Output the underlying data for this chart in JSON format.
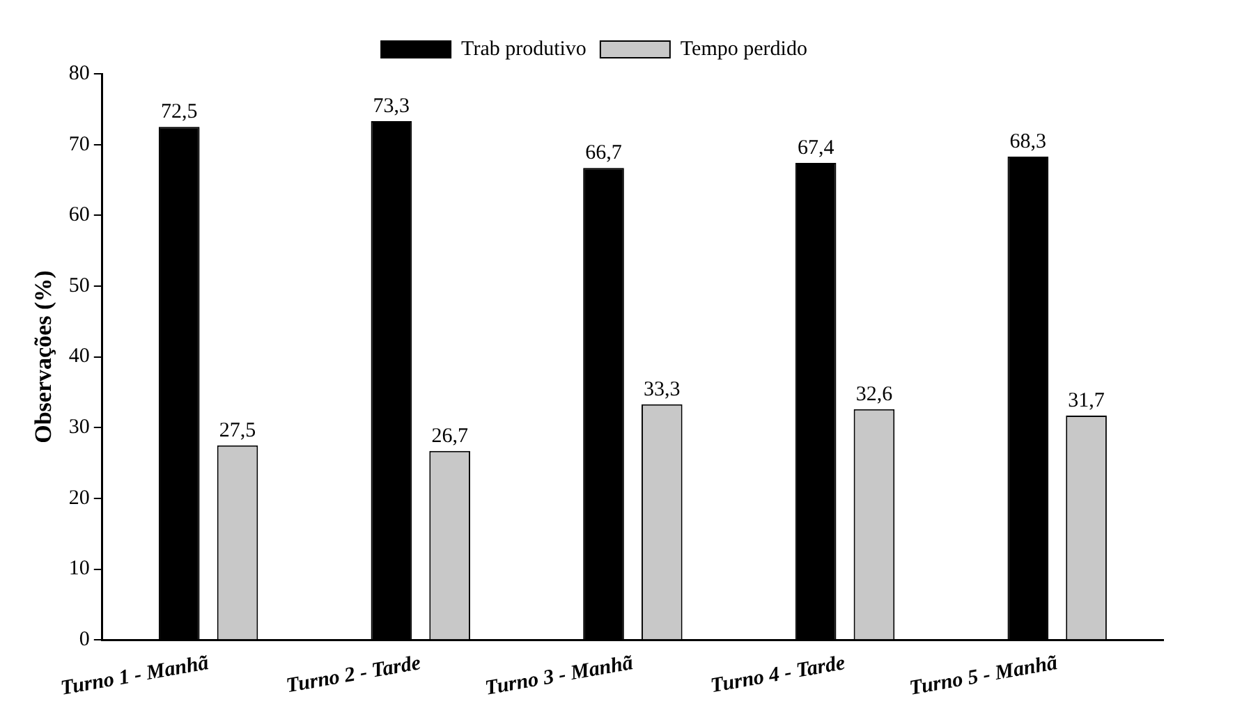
{
  "chart_data": {
    "type": "bar",
    "ylabel": "Observações (%)",
    "categories": [
      "Turno 1 - Manhã",
      "Turno 2 - Tarde",
      "Turno 3 - Manhã",
      "Turno 4 - Tarde",
      "Turno 5 - Manhã"
    ],
    "series": [
      {
        "name": "Trab produtivo",
        "color": "#000000",
        "values": [
          72.5,
          73.3,
          66.7,
          67.4,
          68.3
        ],
        "value_labels": [
          "72,5",
          "73,3",
          "66,7",
          "67,4",
          "68,3"
        ]
      },
      {
        "name": "Tempo perdido",
        "color": "#c8c8c8",
        "values": [
          27.5,
          26.7,
          33.3,
          32.6,
          31.7
        ],
        "value_labels": [
          "27,5",
          "26,7",
          "33,3",
          "32,6",
          "31,7"
        ]
      }
    ],
    "ylim": [
      0,
      80
    ],
    "yticks": [
      0,
      10,
      20,
      30,
      40,
      50,
      60,
      70,
      80
    ],
    "grid": false,
    "legend": "top"
  }
}
